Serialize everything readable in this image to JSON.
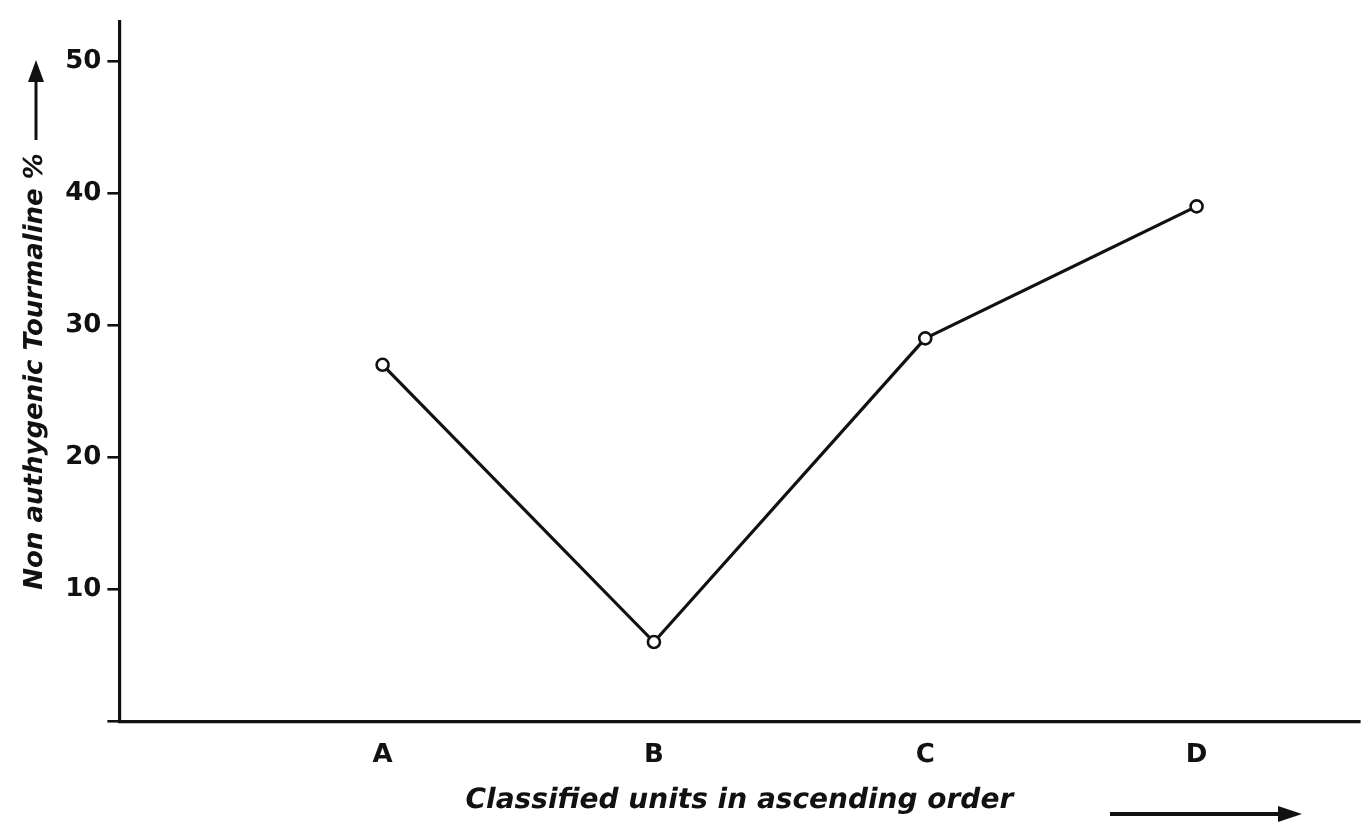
{
  "chart_data": {
    "type": "line",
    "xlabel": "Classified units in ascending order",
    "ylabel": "Non authygenic Tourmaline %",
    "categories": [
      "A",
      "B",
      "C",
      "D"
    ],
    "series": [
      {
        "color": "#111111",
        "values": [
          27,
          6,
          29,
          39
        ]
      }
    ],
    "ylim": [
      0,
      53
    ],
    "yticks": [
      {
        "value": 0,
        "label": null
      },
      10,
      20,
      30,
      40,
      50
    ],
    "grid": false,
    "legend": false,
    "marker": "circle",
    "line_style": "solid"
  }
}
